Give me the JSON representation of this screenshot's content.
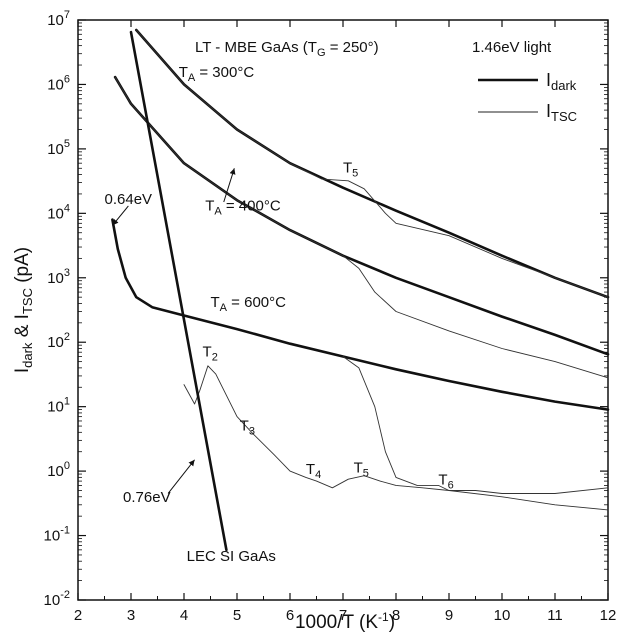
{
  "chart_data": {
    "type": "line",
    "title": "LT - MBE GaAs (T<sub>G</sub> = 250°)",
    "title_parts": {
      "main": "LT - MBE GaAs (T",
      "sub": "G",
      "tail": " = 250°)"
    },
    "subtitle": "1.46eV light",
    "xlabel": "1000/T  (K",
    "xlabel_sup": "-1",
    "xlabel_tail": ")",
    "ylabel_parts": {
      "a": "I",
      "a_sub": "dark",
      "mid": " & I",
      "b_sub": "TSC",
      "tail": " (pA)"
    },
    "xlim": [
      2,
      12
    ],
    "ylim_log10": [
      -2,
      7
    ],
    "yscale": "log",
    "x_ticks": [
      "2",
      "3",
      "4",
      "5",
      "6",
      "7",
      "8",
      "9",
      "10",
      "11",
      "12"
    ],
    "y_ticks": [
      {
        "base": "10",
        "exp": "-2"
      },
      {
        "base": "10",
        "exp": "-1"
      },
      {
        "base": "10",
        "exp": "0"
      },
      {
        "base": "10",
        "exp": "1"
      },
      {
        "base": "10",
        "exp": "2"
      },
      {
        "base": "10",
        "exp": "3"
      },
      {
        "base": "10",
        "exp": "4"
      },
      {
        "base": "10",
        "exp": "5"
      },
      {
        "base": "10",
        "exp": "6"
      },
      {
        "base": "10",
        "exp": "7"
      }
    ],
    "legend": {
      "position": "top-right",
      "entries": [
        {
          "label": "I",
          "sub": "dark",
          "style": "thick"
        },
        {
          "label": "I",
          "sub": "TSC",
          "style": "thin"
        }
      ]
    },
    "series": [
      {
        "kind": "dark",
        "x": [
          3.1,
          4,
          5,
          6,
          7,
          8,
          9,
          10,
          11,
          12
        ],
        "y": [
          7000000.0,
          1000000.0,
          200000.0,
          60000.0,
          25000.0,
          11000.0,
          5000.0,
          2200.0,
          1000.0,
          500.0
        ]
      },
      {
        "kind": "tsc",
        "x": [
          3.1,
          4,
          5,
          6,
          6.6,
          7.1,
          7.4,
          7.8,
          8,
          9,
          10,
          11,
          12
        ],
        "y": [
          7000000.0,
          1000000.0,
          200000.0,
          60000.0,
          34000.0,
          32000.0,
          24000.0,
          10000.0,
          7000.0,
          4500.0,
          2000.0,
          1000.0,
          500.0
        ]
      },
      {
        "kind": "dark",
        "x": [
          2.7,
          3,
          4,
          5,
          6,
          7,
          8,
          9,
          10,
          11,
          12
        ],
        "y": [
          1300000.0,
          500000.0,
          60000.0,
          16000.0,
          5500.0,
          2200.0,
          1000.0,
          500.0,
          250.0,
          130.0,
          65.0
        ]
      },
      {
        "kind": "tsc",
        "x": [
          2.7,
          3,
          4,
          5,
          6,
          7,
          7.3,
          7.6,
          8,
          9,
          10,
          11,
          12
        ],
        "y": [
          1300000.0,
          500000.0,
          60000.0,
          16000.0,
          5500.0,
          2200.0,
          1400.0,
          600.0,
          300.0,
          150.0,
          80.0,
          50.0,
          28.0
        ]
      },
      {
        "kind": "dark",
        "x": [
          2.65,
          2.75,
          2.9,
          3.1,
          3.4,
          4,
          5,
          6,
          7,
          8,
          9,
          10,
          11,
          12
        ],
        "y": [
          8000.0,
          2800.0,
          1000.0,
          500.0,
          350.0,
          260.0,
          160.0,
          95.0,
          60.0,
          38.0,
          25.0,
          17.0,
          12.0,
          9.0
        ]
      },
      {
        "kind": "tsc",
        "x": [
          4.0,
          4.2,
          4.3,
          4.45,
          4.6,
          4.8,
          5,
          5.3,
          5.7,
          6,
          6.3,
          6.5,
          6.8,
          7.1,
          7.4,
          7.7,
          8,
          8.5,
          9,
          9.5,
          10,
          11,
          12
        ],
        "y": [
          22.0,
          11.0,
          18.0,
          43.0,
          32.0,
          15.0,
          7.0,
          3.8,
          1.8,
          1.0,
          0.8,
          0.7,
          0.55,
          0.75,
          0.85,
          0.7,
          0.6,
          0.55,
          0.5,
          0.5,
          0.45,
          0.45,
          0.55
        ]
      },
      {
        "kind": "tsc",
        "x": [
          7,
          7.3,
          7.6,
          7.8,
          8,
          8.4,
          8.8,
          9,
          10,
          11,
          12
        ],
        "y": [
          60.0,
          40.0,
          10.0,
          2.0,
          0.8,
          0.6,
          0.6,
          0.5,
          0.4,
          0.3,
          0.25
        ]
      },
      {
        "kind": "dark",
        "x": [
          3.0,
          4.8
        ],
        "y": [
          6500000.0,
          0.06
        ]
      }
    ],
    "annotations": [
      {
        "text": "T",
        "sub": "A",
        "tail": " = 300°C",
        "x": 3.9,
        "y": 1300000.0
      },
      {
        "text": "T",
        "sub": "5",
        "tail": "",
        "x": 7.0,
        "y": 43000.0
      },
      {
        "text": "T",
        "sub": "A",
        "tail": " = 400°C",
        "x": 4.4,
        "y": 11000.0
      },
      {
        "text": "0.64eV",
        "sub": "",
        "tail": "",
        "x": 2.5,
        "y": 14000.0
      },
      {
        "text": "T",
        "sub": "A",
        "tail": " = 600°C",
        "x": 4.5,
        "y": 350.0
      },
      {
        "text": "T",
        "sub": "2",
        "tail": "",
        "x": 4.35,
        "y": 60.0
      },
      {
        "text": "T",
        "sub": "3",
        "tail": "",
        "x": 5.05,
        "y": 4.3
      },
      {
        "text": "0.76eV",
        "sub": "",
        "tail": "",
        "x": 2.85,
        "y": 0.33
      },
      {
        "text": "T",
        "sub": "4",
        "tail": "",
        "x": 6.3,
        "y": 0.9
      },
      {
        "text": "T",
        "sub": "5",
        "tail": "",
        "x": 7.2,
        "y": 0.95
      },
      {
        "text": "T",
        "sub": "6",
        "tail": "",
        "x": 8.8,
        "y": 0.62
      },
      {
        "text": "LEC SI GaAs",
        "sub": "",
        "tail": "",
        "x": 4.05,
        "y": 0.04
      }
    ],
    "arrows": [
      {
        "from": [
          4.75,
          15000.0
        ],
        "to": [
          4.95,
          50000.0
        ]
      },
      {
        "from": [
          2.95,
          13000.0
        ],
        "to": [
          2.65,
          6500.0
        ]
      },
      {
        "from": [
          3.7,
          0.45
        ],
        "to": [
          4.2,
          1.5
        ]
      }
    ]
  }
}
